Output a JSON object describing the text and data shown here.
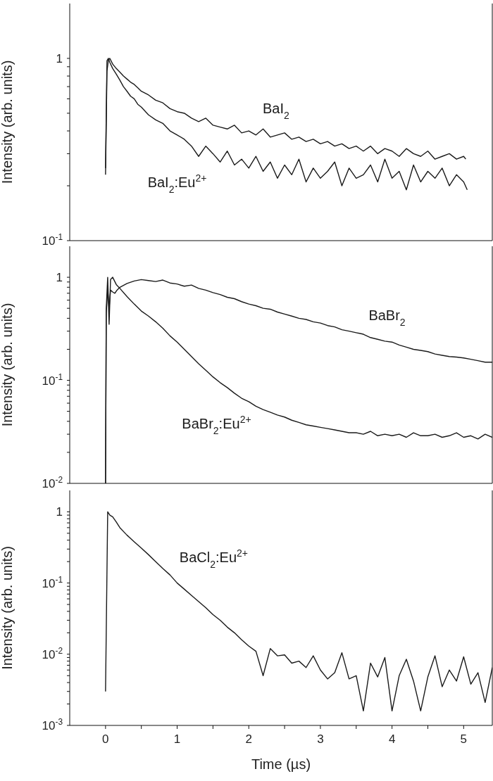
{
  "chart_data": [
    {
      "type": "line",
      "ylabel": "Intensity  (arb. units)",
      "log": "y",
      "tick_labels": "y",
      "line_style": "solid",
      "xlim": [
        -0.5,
        5.4
      ],
      "ylim": [
        0.1,
        2
      ],
      "yticks": [
        {
          "value": 0.1,
          "label": "10$^{-1}$"
        },
        {
          "value": 0.2,
          "label": null
        },
        {
          "value": 0.3,
          "label": null
        },
        {
          "value": 0.4,
          "label": null
        },
        {
          "value": 0.5,
          "label": null
        },
        {
          "value": 0.6,
          "label": null
        },
        {
          "value": 0.7,
          "label": null
        },
        {
          "value": 0.8,
          "label": null
        },
        {
          "value": 0.9,
          "label": null
        },
        {
          "value": 1,
          "label": "1"
        }
      ],
      "series": [
        {
          "name": "BaI$_{2}$",
          "color": "#1a1a1a",
          "x": [
            0,
            0.02,
            0.04,
            0.06,
            0.1,
            0.15,
            0.2,
            0.25,
            0.3,
            0.35,
            0.4,
            0.45,
            0.5,
            0.6,
            0.7,
            0.8,
            0.9,
            1.0,
            1.1,
            1.2,
            1.3,
            1.4,
            1.5,
            1.6,
            1.7,
            1.8,
            1.9,
            2.0,
            2.1,
            2.2,
            2.3,
            2.4,
            2.5,
            2.6,
            2.7,
            2.8,
            2.9,
            3.0,
            3.1,
            3.2,
            3.3,
            3.4,
            3.5,
            3.6,
            3.7,
            3.8,
            3.9,
            4.0,
            4.1,
            4.2,
            4.3,
            4.4,
            4.5,
            4.6,
            4.7,
            4.8,
            4.9,
            5.0,
            5.03
          ],
          "values": [
            0.23,
            0.85,
            0.98,
            1.0,
            0.93,
            0.88,
            0.84,
            0.8,
            0.77,
            0.74,
            0.72,
            0.69,
            0.66,
            0.63,
            0.59,
            0.57,
            0.53,
            0.51,
            0.5,
            0.47,
            0.45,
            0.47,
            0.43,
            0.42,
            0.41,
            0.43,
            0.39,
            0.4,
            0.38,
            0.41,
            0.37,
            0.38,
            0.39,
            0.36,
            0.37,
            0.35,
            0.36,
            0.34,
            0.35,
            0.33,
            0.34,
            0.32,
            0.33,
            0.31,
            0.33,
            0.3,
            0.32,
            0.31,
            0.29,
            0.32,
            0.3,
            0.29,
            0.31,
            0.28,
            0.29,
            0.3,
            0.28,
            0.29,
            0.28
          ]
        },
        {
          "name": "BaI$_{2}$:Eu$^{2+}$",
          "color": "#1a1a1a",
          "x": [
            0,
            0.02,
            0.04,
            0.06,
            0.1,
            0.15,
            0.2,
            0.25,
            0.3,
            0.35,
            0.4,
            0.45,
            0.5,
            0.6,
            0.7,
            0.8,
            0.9,
            1.0,
            1.1,
            1.2,
            1.3,
            1.4,
            1.5,
            1.6,
            1.7,
            1.8,
            1.9,
            2.0,
            2.1,
            2.2,
            2.3,
            2.4,
            2.5,
            2.6,
            2.7,
            2.8,
            2.9,
            3.0,
            3.1,
            3.2,
            3.3,
            3.4,
            3.5,
            3.6,
            3.7,
            3.8,
            3.9,
            4.0,
            4.1,
            4.2,
            4.3,
            4.4,
            4.5,
            4.6,
            4.7,
            4.8,
            4.9,
            5.0,
            5.05
          ],
          "values": [
            0.25,
            0.97,
            1.0,
            0.95,
            0.88,
            0.82,
            0.76,
            0.7,
            0.66,
            0.62,
            0.6,
            0.56,
            0.54,
            0.49,
            0.46,
            0.44,
            0.4,
            0.38,
            0.36,
            0.33,
            0.29,
            0.33,
            0.3,
            0.27,
            0.31,
            0.26,
            0.28,
            0.25,
            0.29,
            0.24,
            0.27,
            0.22,
            0.26,
            0.23,
            0.28,
            0.21,
            0.25,
            0.22,
            0.24,
            0.27,
            0.2,
            0.25,
            0.22,
            0.23,
            0.26,
            0.21,
            0.28,
            0.22,
            0.24,
            0.19,
            0.26,
            0.21,
            0.24,
            0.22,
            0.25,
            0.2,
            0.23,
            0.21,
            0.19
          ]
        }
      ]
    },
    {
      "type": "line",
      "ylabel": "Intensity  (arb. units)",
      "log": "y",
      "tick_labels": "y",
      "line_style": "solid",
      "xlim": [
        -0.5,
        5.4
      ],
      "ylim": [
        0.01,
        2
      ],
      "yticks": [
        {
          "value": 0.01,
          "label": "10$^{-2}$"
        },
        {
          "value": 0.02,
          "label": null
        },
        {
          "value": 0.03,
          "label": null
        },
        {
          "value": 0.04,
          "label": null
        },
        {
          "value": 0.05,
          "label": null
        },
        {
          "value": 0.06,
          "label": null
        },
        {
          "value": 0.07,
          "label": null
        },
        {
          "value": 0.08,
          "label": null
        },
        {
          "value": 0.09,
          "label": null
        },
        {
          "value": 0.1,
          "label": "10$^{-1}$"
        },
        {
          "value": 0.2,
          "label": null
        },
        {
          "value": 0.3,
          "label": null
        },
        {
          "value": 0.4,
          "label": null
        },
        {
          "value": 0.5,
          "label": null
        },
        {
          "value": 0.6,
          "label": null
        },
        {
          "value": 0.7,
          "label": null
        },
        {
          "value": 0.8,
          "label": null
        },
        {
          "value": 0.9,
          "label": null
        },
        {
          "value": 1,
          "label": "1"
        }
      ],
      "series": [
        {
          "name": "BaBr$_{2}$",
          "color": "#1a1a1a",
          "x": [
            0,
            0.01,
            0.03,
            0.05,
            0.07,
            0.1,
            0.13,
            0.16,
            0.2,
            0.3,
            0.4,
            0.5,
            0.6,
            0.7,
            0.8,
            0.9,
            1.0,
            1.1,
            1.2,
            1.3,
            1.4,
            1.5,
            1.6,
            1.7,
            1.8,
            1.9,
            2.0,
            2.1,
            2.2,
            2.3,
            2.4,
            2.5,
            2.6,
            2.7,
            2.8,
            2.9,
            3.0,
            3.1,
            3.2,
            3.3,
            3.4,
            3.5,
            3.6,
            3.7,
            3.8,
            3.9,
            4.0,
            4.1,
            4.2,
            4.3,
            4.4,
            4.5,
            4.6,
            4.7,
            4.8,
            4.9,
            5.0,
            5.1,
            5.2,
            5.3,
            5.4
          ],
          "values": [
            0.01,
            0.45,
            0.75,
            0.5,
            0.75,
            0.72,
            0.7,
            0.75,
            0.8,
            0.87,
            0.92,
            0.95,
            0.93,
            0.91,
            0.94,
            0.88,
            0.86,
            0.82,
            0.84,
            0.78,
            0.75,
            0.71,
            0.68,
            0.64,
            0.62,
            0.58,
            0.55,
            0.53,
            0.5,
            0.49,
            0.46,
            0.44,
            0.42,
            0.4,
            0.39,
            0.37,
            0.36,
            0.34,
            0.33,
            0.31,
            0.3,
            0.29,
            0.28,
            0.26,
            0.25,
            0.24,
            0.235,
            0.22,
            0.21,
            0.2,
            0.195,
            0.19,
            0.18,
            0.175,
            0.17,
            0.168,
            0.165,
            0.16,
            0.155,
            0.15,
            0.15
          ]
        },
        {
          "name": "BaBr$_{2}$:Eu$^{2+}$",
          "color": "#1a1a1a",
          "x": [
            0,
            0.01,
            0.03,
            0.05,
            0.07,
            0.1,
            0.15,
            0.2,
            0.3,
            0.4,
            0.5,
            0.6,
            0.7,
            0.8,
            0.9,
            1.0,
            1.1,
            1.2,
            1.3,
            1.4,
            1.5,
            1.6,
            1.7,
            1.8,
            1.9,
            2.0,
            2.1,
            2.2,
            2.3,
            2.4,
            2.5,
            2.6,
            2.7,
            2.8,
            2.9,
            3.0,
            3.1,
            3.2,
            3.3,
            3.4,
            3.5,
            3.6,
            3.7,
            3.8,
            3.9,
            4.0,
            4.1,
            4.2,
            4.3,
            4.4,
            4.5,
            4.6,
            4.7,
            4.8,
            4.9,
            5.0,
            5.1,
            5.2,
            5.3,
            5.4
          ],
          "values": [
            0.01,
            0.5,
            1.0,
            0.35,
            0.95,
            1.0,
            0.85,
            0.78,
            0.65,
            0.55,
            0.47,
            0.42,
            0.37,
            0.32,
            0.27,
            0.235,
            0.2,
            0.17,
            0.145,
            0.125,
            0.108,
            0.095,
            0.085,
            0.075,
            0.067,
            0.062,
            0.056,
            0.052,
            0.049,
            0.046,
            0.044,
            0.041,
            0.039,
            0.037,
            0.036,
            0.035,
            0.034,
            0.033,
            0.032,
            0.031,
            0.031,
            0.03,
            0.032,
            0.029,
            0.03,
            0.029,
            0.03,
            0.028,
            0.031,
            0.029,
            0.029,
            0.03,
            0.028,
            0.029,
            0.031,
            0.028,
            0.029,
            0.027,
            0.03,
            0.028
          ]
        }
      ]
    },
    {
      "type": "line",
      "xlabel": "Time  (µs)",
      "ylabel": "Intensity  (arb. units)",
      "log": "y",
      "line_style": "solid",
      "xlim": [
        -0.5,
        5.4
      ],
      "ylim": [
        0.001,
        2
      ],
      "xticks": [
        0,
        {
          "value": 0.5,
          "label": null
        },
        1,
        {
          "value": 1.5,
          "label": null
        },
        2,
        {
          "value": 2.5,
          "label": null
        },
        3,
        {
          "value": 3.5,
          "label": null
        },
        4,
        {
          "value": 4.5,
          "label": null
        },
        5
      ],
      "yticks": [
        {
          "value": 0.001,
          "label": "10$^{-3}$"
        },
        {
          "value": 0.002,
          "label": null
        },
        {
          "value": 0.003,
          "label": null
        },
        {
          "value": 0.004,
          "label": null
        },
        {
          "value": 0.005,
          "label": null
        },
        {
          "value": 0.006,
          "label": null
        },
        {
          "value": 0.007,
          "label": null
        },
        {
          "value": 0.008,
          "label": null
        },
        {
          "value": 0.009,
          "label": null
        },
        {
          "value": 0.01,
          "label": "10$^{-2}$"
        },
        {
          "value": 0.02,
          "label": null
        },
        {
          "value": 0.03,
          "label": null
        },
        {
          "value": 0.04,
          "label": null
        },
        {
          "value": 0.05,
          "label": null
        },
        {
          "value": 0.06,
          "label": null
        },
        {
          "value": 0.07,
          "label": null
        },
        {
          "value": 0.08,
          "label": null
        },
        {
          "value": 0.09,
          "label": null
        },
        {
          "value": 0.1,
          "label": "10$^{-1}$"
        },
        {
          "value": 0.2,
          "label": null
        },
        {
          "value": 0.3,
          "label": null
        },
        {
          "value": 0.4,
          "label": null
        },
        {
          "value": 0.5,
          "label": null
        },
        {
          "value": 0.6,
          "label": null
        },
        {
          "value": 0.7,
          "label": null
        },
        {
          "value": 0.8,
          "label": null
        },
        {
          "value": 0.9,
          "label": null
        },
        {
          "value": 1,
          "label": "1"
        }
      ],
      "series": [
        {
          "name": "BaCl$_{2}$:Eu$^{2+}$",
          "color": "#1a1a1a",
          "x": [
            0,
            0.03,
            0.06,
            0.1,
            0.15,
            0.2,
            0.3,
            0.4,
            0.5,
            0.6,
            0.7,
            0.8,
            0.9,
            1.0,
            1.1,
            1.2,
            1.3,
            1.4,
            1.5,
            1.6,
            1.7,
            1.8,
            1.9,
            2.0,
            2.1,
            2.2,
            2.3,
            2.4,
            2.5,
            2.6,
            2.7,
            2.8,
            2.9,
            3.0,
            3.1,
            3.2,
            3.3,
            3.4,
            3.5,
            3.6,
            3.7,
            3.8,
            3.9,
            4.0,
            4.1,
            4.2,
            4.3,
            4.4,
            4.5,
            4.6,
            4.7,
            4.8,
            4.9,
            5.0,
            5.1,
            5.2,
            5.3,
            5.4
          ],
          "values": [
            0.003,
            1.0,
            0.9,
            0.85,
            0.72,
            0.6,
            0.47,
            0.38,
            0.31,
            0.25,
            0.2,
            0.16,
            0.13,
            0.1,
            0.082,
            0.067,
            0.055,
            0.045,
            0.036,
            0.03,
            0.024,
            0.02,
            0.016,
            0.013,
            0.011,
            0.005,
            0.012,
            0.0095,
            0.0098,
            0.0075,
            0.008,
            0.0065,
            0.0095,
            0.006,
            0.0045,
            0.0055,
            0.0105,
            0.0045,
            0.005,
            0.0016,
            0.0075,
            0.0048,
            0.009,
            0.0016,
            0.005,
            0.0085,
            0.0042,
            0.0016,
            0.0048,
            0.0095,
            0.0035,
            0.006,
            0.0042,
            0.0092,
            0.0038,
            0.0055,
            0.0021,
            0.0065
          ]
        }
      ]
    }
  ]
}
